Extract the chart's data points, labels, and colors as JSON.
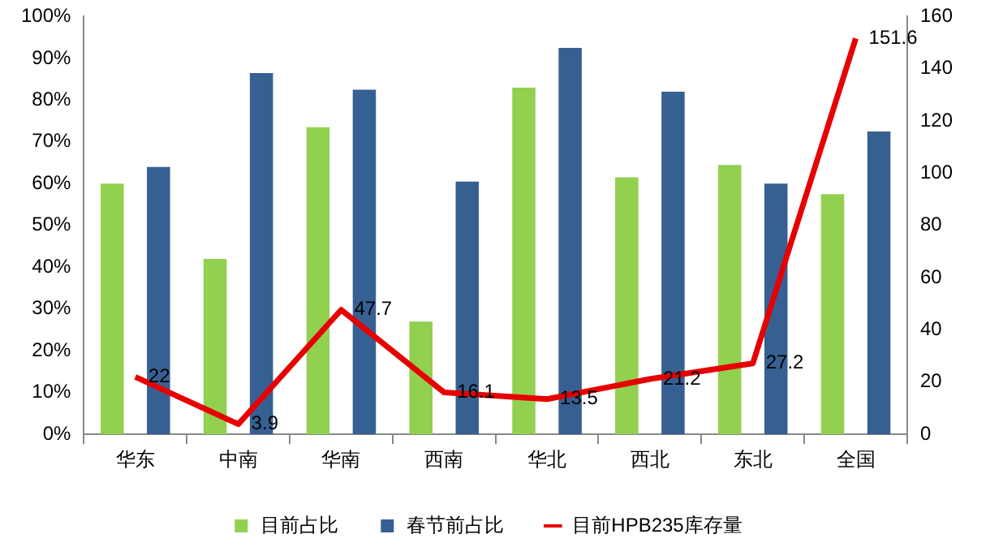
{
  "chart_data": {
    "type": "bar",
    "categories": [
      "华东",
      "中南",
      "华南",
      "西南",
      "华北",
      "西北",
      "东北",
      "全国"
    ],
    "series": [
      {
        "name": "目前占比",
        "color": "#92d050",
        "values": [
          60,
          42,
          73.5,
          27,
          83,
          61.5,
          64.5,
          57.5
        ]
      },
      {
        "name": "春节前占比",
        "color": "#376092",
        "values": [
          64,
          86.5,
          82.5,
          60.5,
          92.5,
          82,
          60,
          72.5
        ]
      },
      {
        "name": "目前HPB235库存量",
        "type": "line",
        "axis": "y2",
        "color": "#e60000",
        "values": [
          22,
          3.9,
          47.7,
          16.1,
          13.5,
          21.2,
          27.2,
          151.6
        ],
        "value_labels": [
          "22",
          "3.9",
          "47.7",
          "16.1",
          "13.5",
          "21.2",
          "27.2",
          "151.6"
        ]
      }
    ],
    "ylim": [
      0,
      100
    ],
    "yticks": [
      {
        "value": 0,
        "label": "0%"
      },
      {
        "value": 10,
        "label": "10%"
      },
      {
        "value": 20,
        "label": "20%"
      },
      {
        "value": 30,
        "label": "30%"
      },
      {
        "value": 40,
        "label": "40%"
      },
      {
        "value": 50,
        "label": "50%"
      },
      {
        "value": 60,
        "label": "60%"
      },
      {
        "value": 70,
        "label": "70%"
      },
      {
        "value": 80,
        "label": "80%"
      },
      {
        "value": 90,
        "label": "90%"
      },
      {
        "value": 100,
        "label": "100%"
      }
    ],
    "y2lim": [
      0,
      160
    ],
    "y2ticks": [
      0,
      20,
      40,
      60,
      80,
      100,
      120,
      140,
      160
    ],
    "grid": false,
    "legend": "bottom",
    "marker": "none"
  }
}
